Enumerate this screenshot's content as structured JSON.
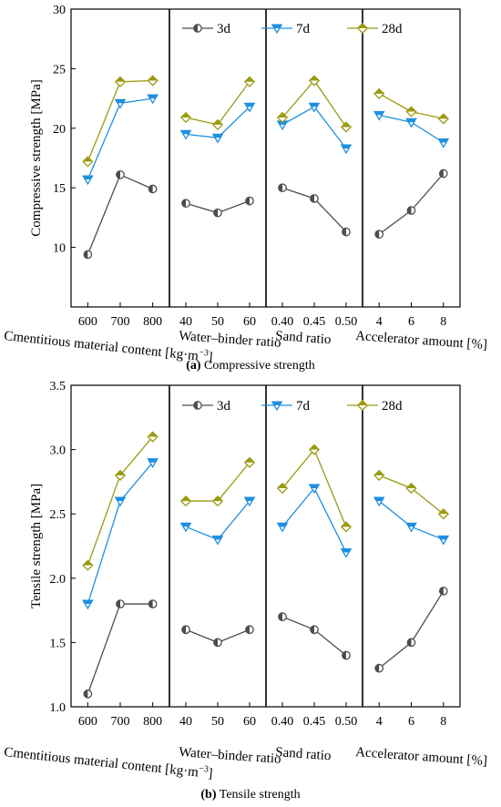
{
  "colors": {
    "s3d": "#4d4d4d",
    "s7d": "#1f8fe0",
    "s28d": "#9b9a12"
  },
  "chart_data": [
    {
      "type": "line",
      "caption_letter": "(a)",
      "caption_text": " Compressive strength",
      "ylabel": "Compressive strength [MPa]",
      "ylim": [
        5,
        30
      ],
      "yticks": [
        "10",
        "15",
        "20",
        "25",
        "30"
      ],
      "legend_position": "top",
      "legend": [
        "3d",
        "7d",
        "28d"
      ],
      "groups": [
        {
          "xlabel_main": "Cmentitious material content [kg·m",
          "xlabel_sup": "−3",
          "xlabel_end": "]",
          "categories": [
            "600",
            "700",
            "800"
          ],
          "series": [
            {
              "name": "3d",
              "values": [
                9.4,
                16.1,
                14.9
              ]
            },
            {
              "name": "7d",
              "values": [
                15.7,
                22.1,
                22.5
              ]
            },
            {
              "name": "28d",
              "values": [
                17.2,
                23.9,
                24.0
              ]
            }
          ]
        },
        {
          "xlabel_main": "Water–binder ratio",
          "categories": [
            "40",
            "50",
            "60"
          ],
          "series": [
            {
              "name": "3d",
              "values": [
                13.7,
                12.9,
                13.9
              ]
            },
            {
              "name": "7d",
              "values": [
                19.5,
                19.2,
                21.8
              ]
            },
            {
              "name": "28d",
              "values": [
                20.9,
                20.3,
                23.9
              ]
            }
          ]
        },
        {
          "xlabel_main": "Sand ratio",
          "categories": [
            "0.40",
            "0.45",
            "0.50"
          ],
          "series": [
            {
              "name": "3d",
              "values": [
                15.0,
                14.1,
                11.3
              ]
            },
            {
              "name": "7d",
              "values": [
                20.3,
                21.8,
                18.3
              ]
            },
            {
              "name": "28d",
              "values": [
                20.9,
                24.0,
                20.1
              ]
            }
          ]
        },
        {
          "xlabel_main": "Accelerator amount [%]",
          "categories": [
            "4",
            "6",
            "8"
          ],
          "series": [
            {
              "name": "3d",
              "values": [
                11.1,
                13.1,
                16.2
              ]
            },
            {
              "name": "7d",
              "values": [
                21.1,
                20.5,
                18.8
              ]
            },
            {
              "name": "28d",
              "values": [
                22.9,
                21.4,
                20.8
              ]
            }
          ]
        }
      ]
    },
    {
      "type": "line",
      "caption_letter": "(b)",
      "caption_text": " Tensile strength",
      "ylabel": "Tensile strength [MPa]",
      "ylim": [
        1.0,
        3.5
      ],
      "yticks": [
        "1.0",
        "1.5",
        "2.0",
        "2.5",
        "3.0",
        "3.5"
      ],
      "legend_position": "top",
      "legend": [
        "3d",
        "7d",
        "28d"
      ],
      "groups": [
        {
          "xlabel_main": "Cmentitious material content [kg·m",
          "xlabel_sup": "−3",
          "xlabel_end": "]",
          "categories": [
            "600",
            "700",
            "800"
          ],
          "series": [
            {
              "name": "3d",
              "values": [
                1.1,
                1.8,
                1.8
              ]
            },
            {
              "name": "7d",
              "values": [
                1.8,
                2.6,
                2.9
              ]
            },
            {
              "name": "28d",
              "values": [
                2.1,
                2.8,
                3.1
              ]
            }
          ]
        },
        {
          "xlabel_main": "Water–binder ratio",
          "categories": [
            "40",
            "50",
            "60"
          ],
          "series": [
            {
              "name": "3d",
              "values": [
                1.6,
                1.5,
                1.6
              ]
            },
            {
              "name": "7d",
              "values": [
                2.4,
                2.3,
                2.6
              ]
            },
            {
              "name": "28d",
              "values": [
                2.6,
                2.6,
                2.9
              ]
            }
          ]
        },
        {
          "xlabel_main": "Sand ratio",
          "categories": [
            "0.40",
            "0.45",
            "0.50"
          ],
          "series": [
            {
              "name": "3d",
              "values": [
                1.7,
                1.6,
                1.4
              ]
            },
            {
              "name": "7d",
              "values": [
                2.4,
                2.7,
                2.2
              ]
            },
            {
              "name": "28d",
              "values": [
                2.7,
                3.0,
                2.4
              ]
            }
          ]
        },
        {
          "xlabel_main": "Accelerator amount [%]",
          "categories": [
            "4",
            "6",
            "8"
          ],
          "series": [
            {
              "name": "3d",
              "values": [
                1.3,
                1.5,
                1.9
              ]
            },
            {
              "name": "7d",
              "values": [
                2.6,
                2.4,
                2.3
              ]
            },
            {
              "name": "28d",
              "values": [
                2.8,
                2.7,
                2.5
              ]
            }
          ]
        }
      ]
    }
  ]
}
